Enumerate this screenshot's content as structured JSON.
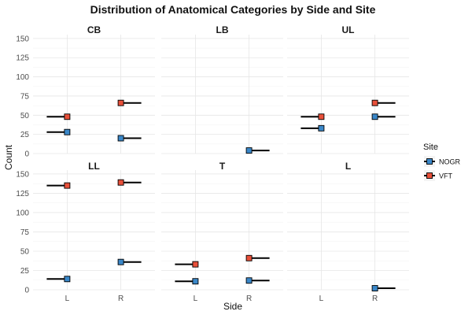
{
  "chart_data": {
    "type": "scatter",
    "title": "Distribution of Anatomical Categories by Side and Site",
    "xlabel": "Side",
    "ylabel": "Count",
    "x_categories": [
      "L",
      "R"
    ],
    "ylim": [
      0,
      155
    ],
    "yticks": [
      0,
      25,
      50,
      75,
      100,
      125,
      150
    ],
    "grid": true,
    "legend": {
      "title": "Site",
      "position": "right",
      "entries": [
        {
          "name": "NOGR",
          "color": "#3a87c8"
        },
        {
          "name": "VFT",
          "color": "#e8503a"
        }
      ]
    },
    "panels": [
      {
        "name": "CB",
        "series": [
          {
            "name": "NOGR",
            "values": {
              "L": 28,
              "R": 20
            }
          },
          {
            "name": "VFT",
            "values": {
              "L": 48,
              "R": 66
            }
          }
        ]
      },
      {
        "name": "LB",
        "series": [
          {
            "name": "NOGR",
            "values": {
              "R": 4
            }
          }
        ]
      },
      {
        "name": "UL",
        "series": [
          {
            "name": "NOGR",
            "values": {
              "L": 33,
              "R": 48
            }
          },
          {
            "name": "VFT",
            "values": {
              "L": 48,
              "R": 66
            }
          }
        ]
      },
      {
        "name": "LL",
        "series": [
          {
            "name": "NOGR",
            "values": {
              "L": 14,
              "R": 36
            }
          },
          {
            "name": "VFT",
            "values": {
              "L": 135,
              "R": 139
            }
          }
        ]
      },
      {
        "name": "T",
        "series": [
          {
            "name": "NOGR",
            "values": {
              "L": 11,
              "R": 12
            }
          },
          {
            "name": "VFT",
            "values": {
              "L": 33,
              "R": 41
            }
          }
        ]
      },
      {
        "name": "L",
        "series": [
          {
            "name": "NOGR",
            "values": {
              "R": 2
            }
          }
        ]
      }
    ]
  }
}
